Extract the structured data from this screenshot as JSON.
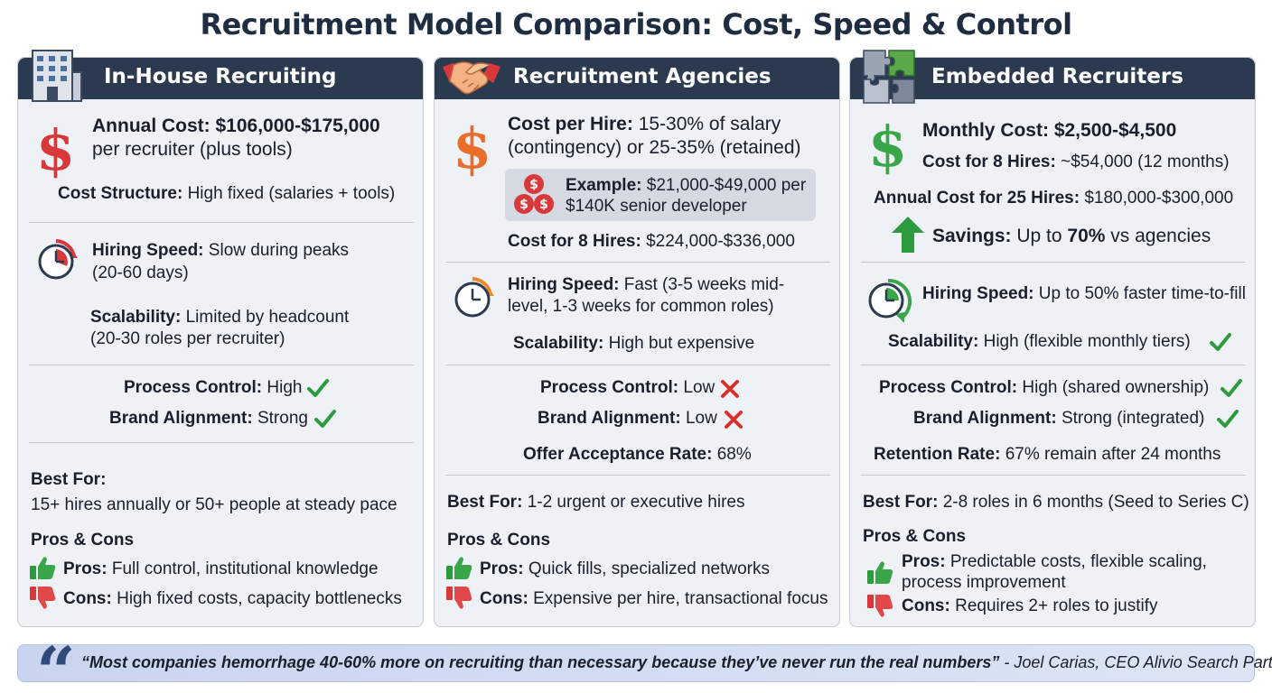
{
  "title": "Recruitment Model Comparison: Cost, Speed & Control",
  "colors": {
    "header_bg": "#2c3a50",
    "card_bg": "#eef1f5",
    "check": "#2e9a3e",
    "cross": "#d8322f",
    "quote_mark": "#2f4a7a"
  },
  "icons": {
    "col1_header": "building-icon",
    "col2_header": "handshake-icon",
    "col3_header": "puzzle-icon",
    "check": "check-icon",
    "cross": "cross-icon",
    "thumbs_up": "thumbs-up-icon",
    "thumbs_down": "thumbs-down-icon",
    "quote": "quote-icon"
  },
  "columns": [
    {
      "header": "In-House Recruiting",
      "cost_label": "Annual Cost:",
      "cost_value": "$106,000-$175,000",
      "cost_line2": "per recruiter (plus tools)",
      "structure_label": "Cost Structure:",
      "structure_value": "High fixed (salaries + tools)",
      "speed_label": "Hiring Speed:",
      "speed_value": "Slow during peaks",
      "speed_line2": "(20-60 days)",
      "scal_label": "Scalability:",
      "scal_value": "Limited by headcount",
      "scal_line2": "(20-30 roles per recruiter)",
      "control_label": "Process Control:",
      "control_value": "High",
      "brand_label": "Brand Alignment:",
      "brand_value": "Strong",
      "best_label": "Best For:",
      "best_value": "15+ hires annually or 50+ people at steady pace",
      "pc_title": "Pros & Cons",
      "pros_label": "Pros:",
      "pros_value": "Full control, institutional knowledge",
      "cons_label": "Cons:",
      "cons_value": "High fixed costs, capacity bottlenecks"
    },
    {
      "header": "Recruitment Agencies",
      "cost_label": "Cost per Hire:",
      "cost_value": "15-30% of salary",
      "cost_line2": "(contingency) or 25-35% (retained)",
      "example_label": "Example:",
      "example_value": "$21,000-$49,000 per",
      "example_line2": "$140K senior developer",
      "cost8_label": "Cost for 8 Hires:",
      "cost8_value": "$224,000-$336,000",
      "speed_label": "Hiring Speed:",
      "speed_value": "Fast (3-5 weeks mid-",
      "speed_line2": "level, 1-3 weeks for common roles)",
      "scal_label": "Scalability:",
      "scal_value": "High but expensive",
      "control_label": "Process Control:",
      "control_value": "Low",
      "brand_label": "Brand Alignment:",
      "brand_value": "Low",
      "offer_label": "Offer Acceptance Rate:",
      "offer_value": "68%",
      "best_label": "Best For:",
      "best_value": "1-2 urgent or executive hires",
      "pc_title": "Pros & Cons",
      "pros_label": "Pros:",
      "pros_value": "Quick fills, specialized networks",
      "cons_label": "Cons:",
      "cons_value": "Expensive per hire, transactional focus"
    },
    {
      "header": "Embedded Recruiters",
      "cost_label": "Monthly Cost:",
      "cost_value": "$2,500-$4,500",
      "cost8_label": "Cost for 8 Hires:",
      "cost8_value": "~$54,000 (12 months)",
      "annual_label": "Annual Cost for 25 Hires:",
      "annual_value": "$180,000-$300,000",
      "savings_label": "Savings:",
      "savings_pre": "Up to",
      "savings_pct": "70%",
      "savings_post": "vs agencies",
      "speed_label": "Hiring Speed:",
      "speed_value": "Up to 50% faster time-to-fill",
      "scal_label": "Scalability:",
      "scal_value": "High (flexible monthly tiers)",
      "control_label": "Process Control:",
      "control_value": "High (shared ownership)",
      "brand_label": "Brand Alignment:",
      "brand_value": "Strong (integrated)",
      "retention_label": "Retention Rate:",
      "retention_value": "67% remain after 24 months",
      "best_label": "Best For:",
      "best_value": "2-8 roles in 6 months (Seed to Series C)",
      "pc_title": "Pros & Cons",
      "pros_label": "Pros:",
      "pros_value": "Predictable costs, flexible scaling,",
      "pros_line2": "process improvement",
      "cons_label": "Cons:",
      "cons_value": "Requires 2+ roles to justify"
    }
  ],
  "quote": {
    "text": "“Most companies hemorrhage 40-60% more on recruiting than necessary because they’ve never run the real numbers”",
    "attribution": "- Joel Carias, CEO Alivio Search Partners"
  }
}
